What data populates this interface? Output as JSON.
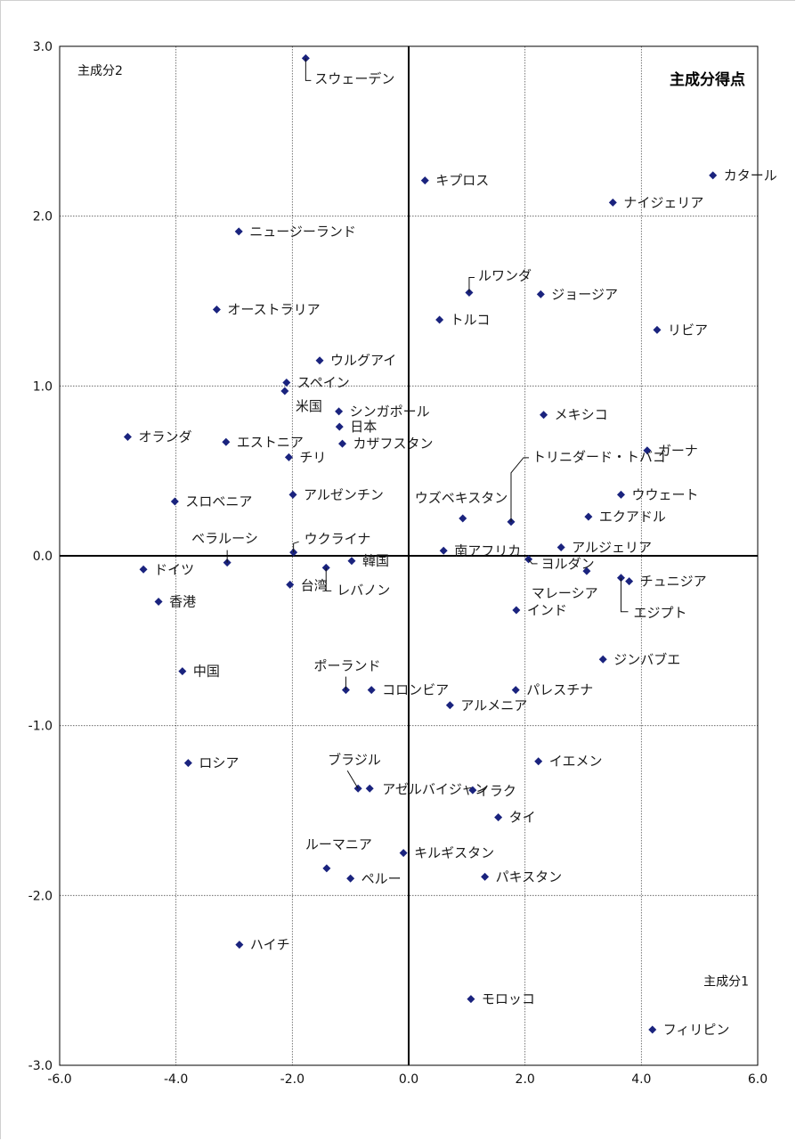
{
  "chart_data": {
    "type": "scatter",
    "title": "主成分得点",
    "xlabel": "主成分1",
    "ylabel": "主成分2",
    "xlim": [
      -6.0,
      6.0
    ],
    "ylim": [
      -3.0,
      3.0
    ],
    "x_ticks": [
      "-6.0",
      "-4.0",
      "-2.0",
      "0.0",
      "2.0",
      "4.0",
      "6.0"
    ],
    "y_ticks": [
      "3.0",
      "2.0",
      "1.0",
      "0.0",
      "-1.0",
      "-2.0",
      "-3.0"
    ],
    "grid": true,
    "marker_color": "#1a237e",
    "points": [
      {
        "label": "スウェーデン",
        "x": -1.77,
        "y": 2.93
      },
      {
        "label": "カタール",
        "x": 5.23,
        "y": 2.24
      },
      {
        "label": "キプロス",
        "x": 0.28,
        "y": 2.21
      },
      {
        "label": "ナイジェリア",
        "x": 3.51,
        "y": 2.08
      },
      {
        "label": "ニュージーランド",
        "x": -2.92,
        "y": 1.91
      },
      {
        "label": "ルワンダ",
        "x": 1.04,
        "y": 1.55
      },
      {
        "label": "ジョージア",
        "x": 2.27,
        "y": 1.54
      },
      {
        "label": "オーストラリア",
        "x": -3.3,
        "y": 1.45
      },
      {
        "label": "トルコ",
        "x": 0.53,
        "y": 1.39
      },
      {
        "label": "リビア",
        "x": 4.27,
        "y": 1.33
      },
      {
        "label": "ウルグアイ",
        "x": -1.53,
        "y": 1.15
      },
      {
        "label": "スペイン",
        "x": -2.1,
        "y": 1.02
      },
      {
        "label": "米国",
        "x": -2.13,
        "y": 0.97
      },
      {
        "label": "シンガポール",
        "x": -1.2,
        "y": 0.85
      },
      {
        "label": "メキシコ",
        "x": 2.32,
        "y": 0.83
      },
      {
        "label": "日本",
        "x": -1.19,
        "y": 0.76
      },
      {
        "label": "オランダ",
        "x": -4.83,
        "y": 0.7
      },
      {
        "label": "エストニア",
        "x": -3.14,
        "y": 0.67
      },
      {
        "label": "カザフスタン",
        "x": -1.14,
        "y": 0.66
      },
      {
        "label": "ガーナ",
        "x": 4.1,
        "y": 0.62
      },
      {
        "label": "チリ",
        "x": -2.06,
        "y": 0.58
      },
      {
        "label": "トリニダード・トバゴ",
        "x": 1.76,
        "y": 0.2
      },
      {
        "label": "アルゼンチン",
        "x": -1.99,
        "y": 0.36
      },
      {
        "label": "ウウェート",
        "x": 3.65,
        "y": 0.36
      },
      {
        "label": "スロベニア",
        "x": -4.02,
        "y": 0.32
      },
      {
        "label": "エクアドル",
        "x": 3.09,
        "y": 0.23
      },
      {
        "label": "ウズベキスタン",
        "x": 0.93,
        "y": 0.22
      },
      {
        "label": "アルジェリア",
        "x": 2.62,
        "y": 0.05
      },
      {
        "label": "南アフリカ",
        "x": 0.6,
        "y": 0.03
      },
      {
        "label": "ウクライナ",
        "x": -1.98,
        "y": 0.02
      },
      {
        "label": "ベラルーシ",
        "x": -3.12,
        "y": -0.04
      },
      {
        "label": "ヨルダン",
        "x": 2.06,
        "y": -0.02
      },
      {
        "label": "韓国",
        "x": -0.98,
        "y": -0.03
      },
      {
        "label": "ドイツ",
        "x": -4.56,
        "y": -0.08
      },
      {
        "label": "レバノン",
        "x": -1.42,
        "y": -0.07
      },
      {
        "label": "マレーシア",
        "x": 3.06,
        "y": -0.09
      },
      {
        "label": "エジプト",
        "x": 3.65,
        "y": -0.13
      },
      {
        "label": "チュニジア",
        "x": 3.79,
        "y": -0.15
      },
      {
        "label": "台湾",
        "x": -2.04,
        "y": -0.17
      },
      {
        "label": "香港",
        "x": -4.3,
        "y": -0.27
      },
      {
        "label": "インド",
        "x": 1.85,
        "y": -0.32
      },
      {
        "label": "ジンバブエ",
        "x": 3.34,
        "y": -0.61
      },
      {
        "label": "中国",
        "x": -3.89,
        "y": -0.68
      },
      {
        "label": "ポーランド",
        "x": -1.08,
        "y": -0.79
      },
      {
        "label": "コロンビア",
        "x": -0.64,
        "y": -0.79
      },
      {
        "label": "パレスチナ",
        "x": 1.84,
        "y": -0.79
      },
      {
        "label": "アルメニア",
        "x": 0.71,
        "y": -0.88
      },
      {
        "label": "ロシア",
        "x": -3.79,
        "y": -1.22
      },
      {
        "label": "イエメン",
        "x": 2.23,
        "y": -1.21
      },
      {
        "label": "ブラジル",
        "x": -0.87,
        "y": -1.37
      },
      {
        "label": "アゼルバイジャン",
        "x": -0.67,
        "y": -1.37
      },
      {
        "label": "イラク",
        "x": 1.1,
        "y": -1.38
      },
      {
        "label": "タイ",
        "x": 1.54,
        "y": -1.54
      },
      {
        "label": "キルギスタン",
        "x": -0.09,
        "y": -1.75
      },
      {
        "label": "ルーマニア",
        "x": -1.41,
        "y": -1.84
      },
      {
        "label": "ペルー",
        "x": -1.0,
        "y": -1.9
      },
      {
        "label": "パキスタン",
        "x": 1.31,
        "y": -1.89
      },
      {
        "label": "ハイチ",
        "x": -2.91,
        "y": -2.29
      },
      {
        "label": "モロッコ",
        "x": 1.07,
        "y": -2.61
      },
      {
        "label": "フィリピン",
        "x": 4.19,
        "y": -2.79
      }
    ]
  }
}
